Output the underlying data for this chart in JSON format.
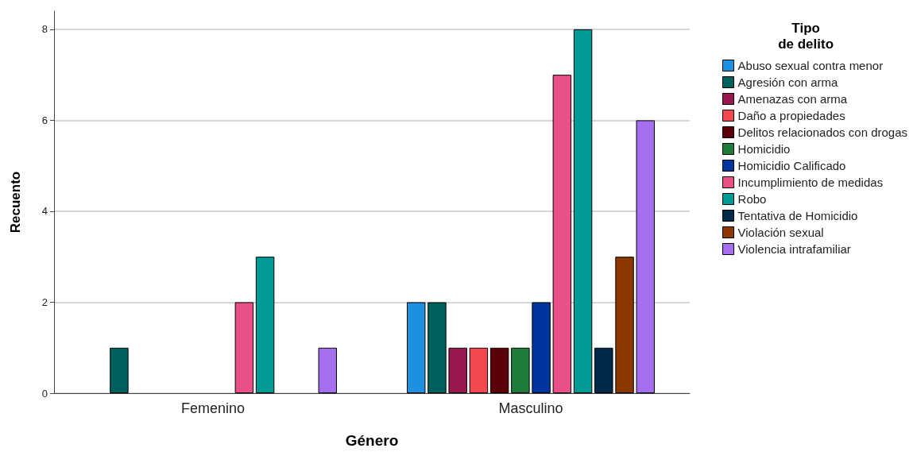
{
  "chart_data": {
    "type": "bar",
    "xlabel": "Género",
    "ylabel": "Recuento",
    "legend_title": "Tipo\nde delito",
    "categories": [
      "Femenino",
      "Masculino"
    ],
    "ylim": [
      0,
      8.4
    ],
    "yticks": [
      0,
      2,
      4,
      6,
      8
    ],
    "grid": "y",
    "legend": "right",
    "series": [
      {
        "name": "Abuso sexual contra menor",
        "color": "#1f8fe0",
        "values": [
          0,
          2
        ]
      },
      {
        "name": "Agresión con arma",
        "color": "#00605e",
        "values": [
          1,
          2
        ]
      },
      {
        "name": "Amenazas con arma",
        "color": "#98184f",
        "values": [
          0,
          1
        ]
      },
      {
        "name": "Daño a propiedades",
        "color": "#f5484f",
        "values": [
          0,
          1
        ]
      },
      {
        "name": "Delitos relacionados con drogas",
        "color": "#5b0008",
        "values": [
          0,
          1
        ]
      },
      {
        "name": "Homicidio",
        "color": "#1e7c3b",
        "values": [
          0,
          1
        ]
      },
      {
        "name": "Homicidio Calificado",
        "color": "#0234a0",
        "values": [
          0,
          2
        ]
      },
      {
        "name": "Incumplimiento de medidas",
        "color": "#ea4f88",
        "values": [
          2,
          7
        ]
      },
      {
        "name": "Robo",
        "color": "#009b96",
        "values": [
          3,
          8
        ]
      },
      {
        "name": "Tentativa de Homicidio",
        "color": "#002a4a",
        "values": [
          0,
          1
        ]
      },
      {
        "name": "Violación sexual",
        "color": "#8b3700",
        "values": [
          0,
          3
        ]
      },
      {
        "name": "Violencia intrafamiliar",
        "color": "#a66ff2",
        "values": [
          1,
          6
        ]
      }
    ]
  }
}
